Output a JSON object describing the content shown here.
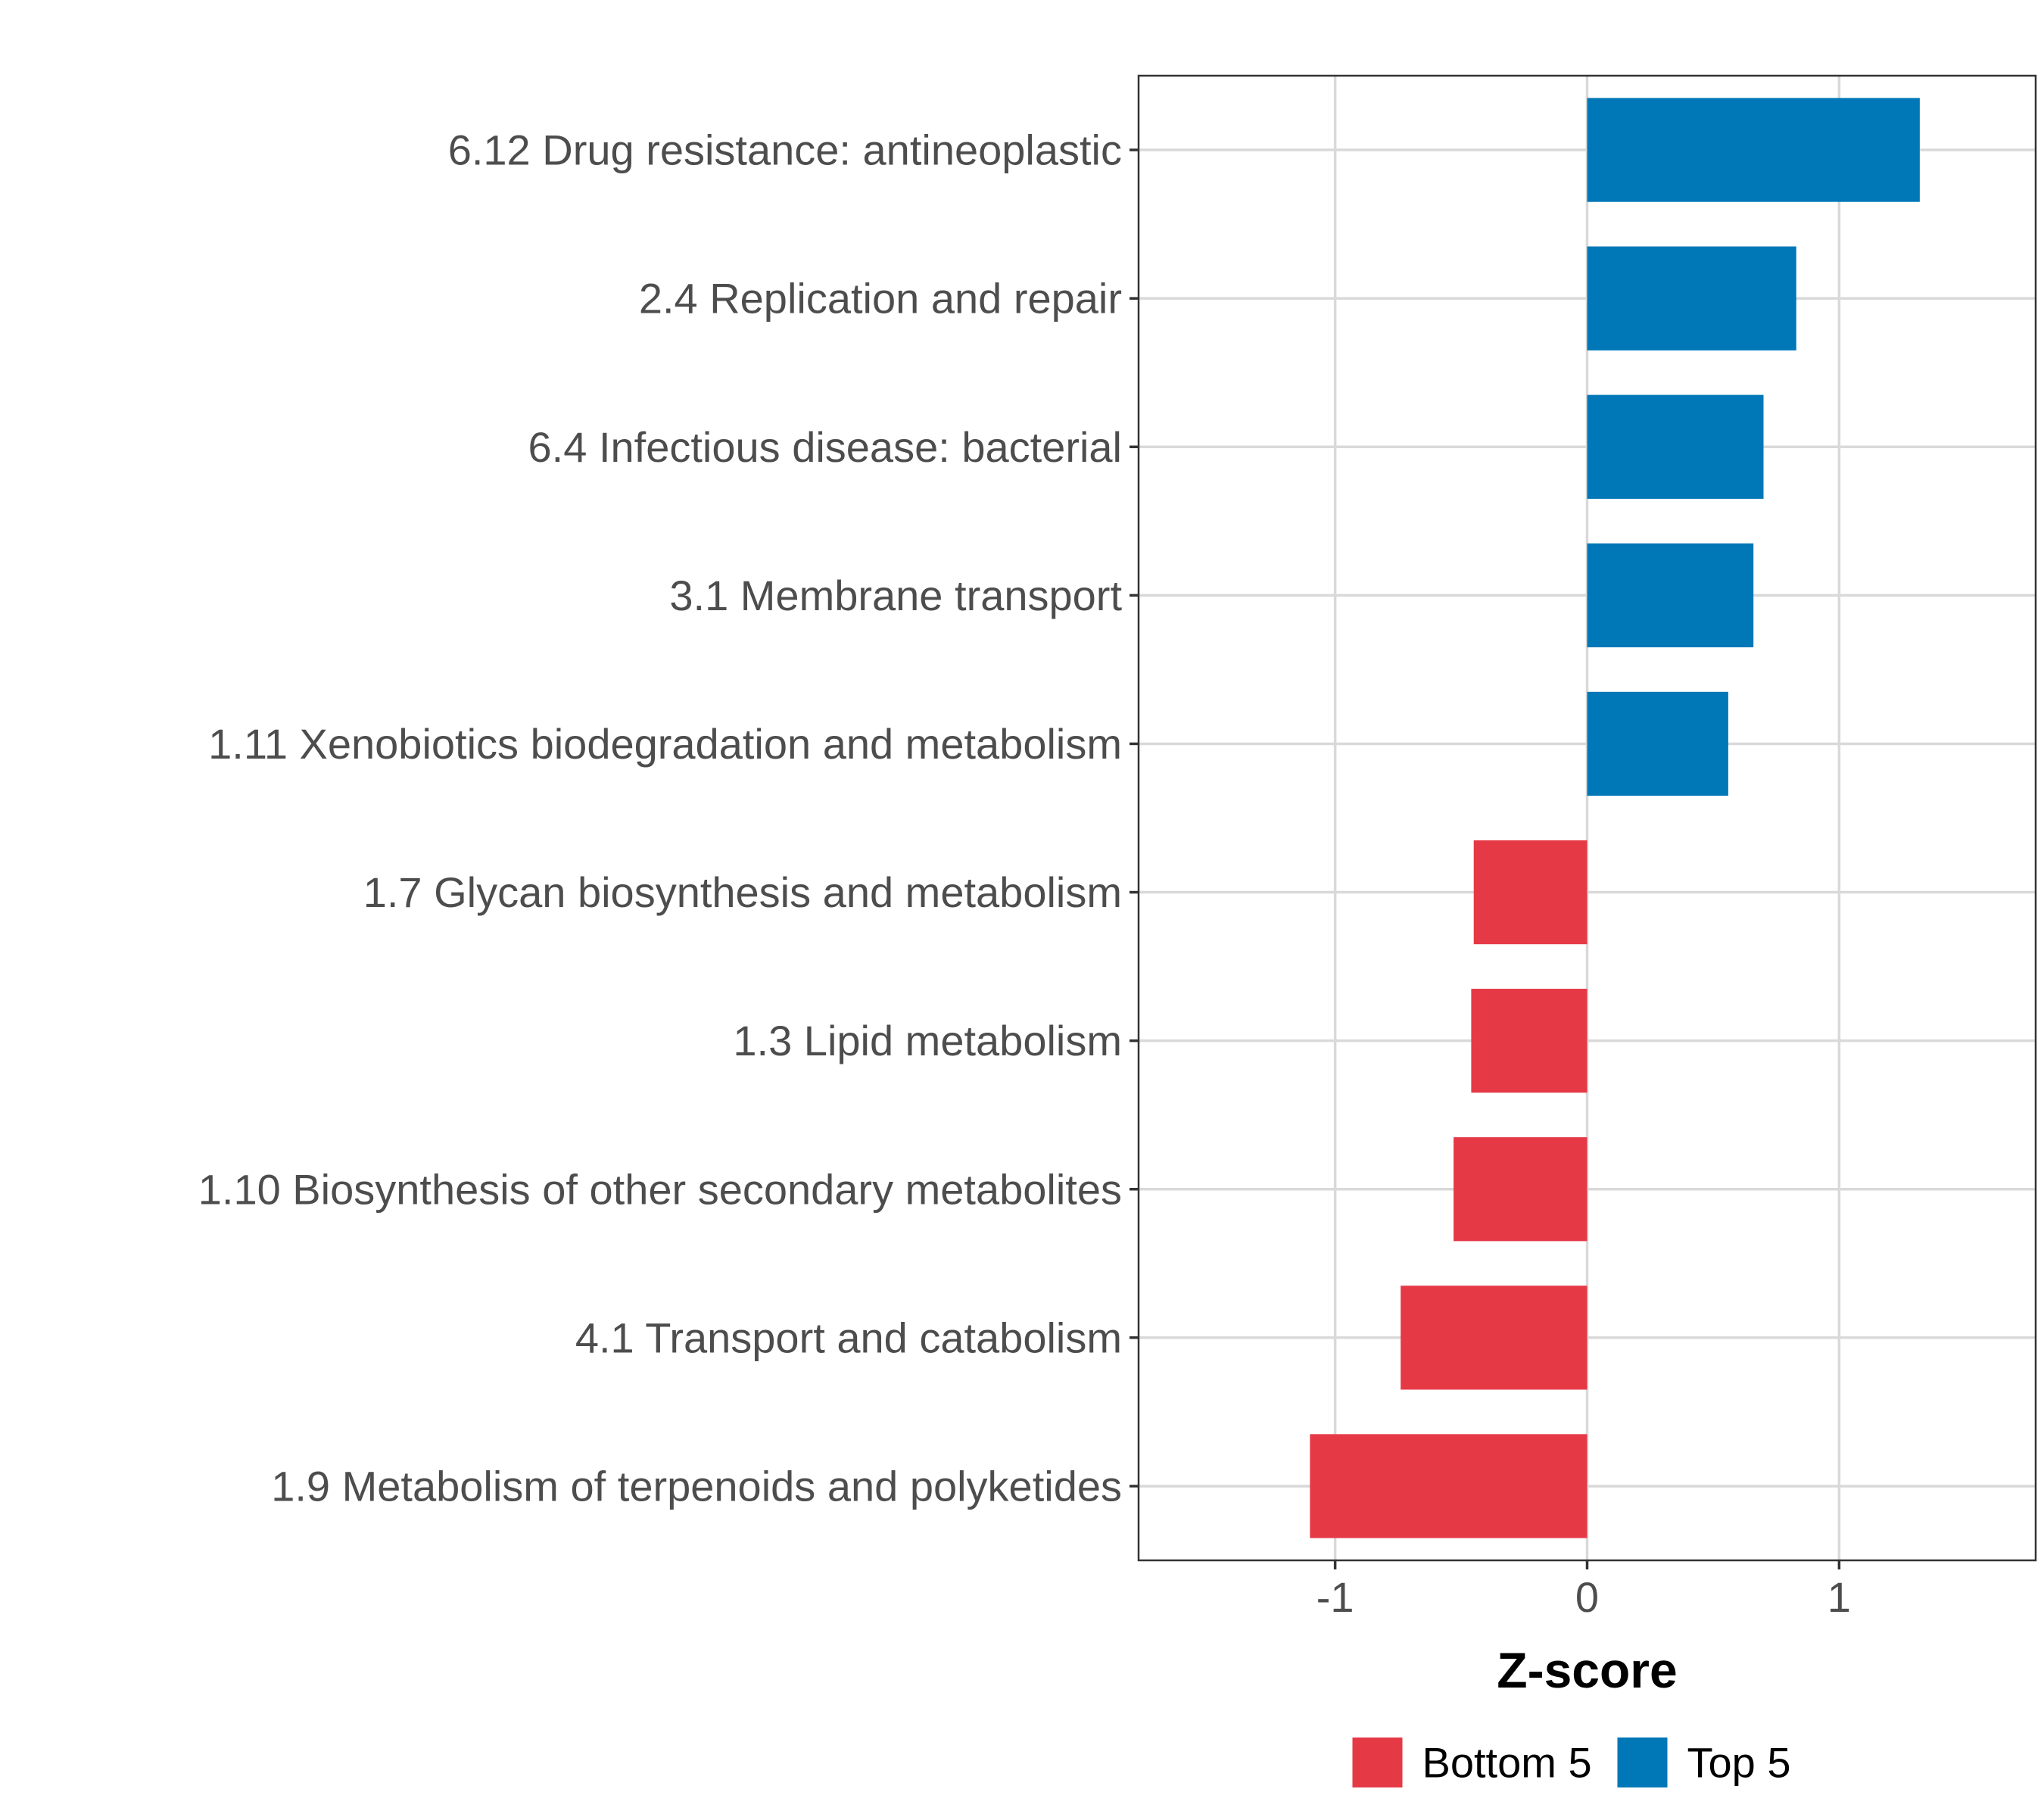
{
  "chart_data": {
    "type": "bar",
    "orientation": "horizontal",
    "categories": [
      "6.12 Drug resistance: antineoplastic",
      "2.4 Replication and repair",
      "6.4 Infectious disease: bacterial",
      "3.1 Membrane transport",
      "1.11 Xenobiotics biodegradation and metabolism",
      "1.7 Glycan biosynthesis and metabolism",
      "1.3 Lipid metabolism",
      "1.10 Biosynthesis of other secondary metabolites",
      "4.1 Transport and catabolism",
      "1.9 Metabolism of terpenoids and polyketides"
    ],
    "values": [
      1.32,
      0.83,
      0.7,
      0.66,
      0.56,
      -0.45,
      -0.46,
      -0.53,
      -0.74,
      -1.1
    ],
    "groups": [
      "Top 5",
      "Top 5",
      "Top 5",
      "Top 5",
      "Top 5",
      "Bottom 5",
      "Bottom 5",
      "Bottom 5",
      "Bottom 5",
      "Bottom 5"
    ],
    "xlabel": "Z-score",
    "ylabel": "",
    "xlim": [
      -1.78,
      1.78
    ],
    "xticks": [
      -1,
      0,
      1
    ],
    "xtick_labels": [
      "-1",
      "0",
      "1"
    ],
    "grid": true,
    "legend": {
      "placement": "bottom",
      "entries": [
        {
          "label": "Bottom 5",
          "color": "#e63946"
        },
        {
          "label": "Top 5",
          "color": "#0077b6"
        }
      ]
    }
  }
}
